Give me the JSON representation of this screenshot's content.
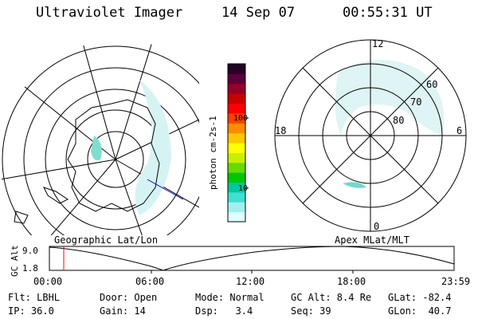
{
  "header": {
    "instrument": "Ultraviolet Imager",
    "date": "14 Sep 07",
    "time": "00:55:31 UT"
  },
  "left_panel": {
    "caption": "Geographic Lat/Lon"
  },
  "right_panel": {
    "caption": "Apex MLat/MLT",
    "mlt_labels": {
      "top": "12",
      "left": "18",
      "right": "6",
      "bottom": "0"
    },
    "lat_labels": [
      "60",
      "70",
      "80"
    ]
  },
  "colorbar": {
    "unit_label": "photon cm-2s-1",
    "ticks": [
      "100",
      "10"
    ],
    "colors": [
      "#e0ffff",
      "#a0f0f0",
      "#40e0d0",
      "#00c8a0",
      "#00c800",
      "#64dc00",
      "#c8f000",
      "#ffff00",
      "#ffc800",
      "#ff8c00",
      "#ff4000",
      "#ff0000",
      "#c80000",
      "#960028",
      "#5a003c",
      "#28002a"
    ]
  },
  "timeline": {
    "y_axis_label": "GC Alt",
    "y_values": [
      "9.0",
      "1.8"
    ],
    "x_ticks": [
      "00:00",
      "06:00",
      "12:00",
      "18:00",
      "23:59"
    ],
    "marker_color": "#ff0000"
  },
  "info": {
    "row1": {
      "flt": "Flt: LBHL",
      "door": "Door: Open",
      "mode": "Mode: Normal",
      "gcalt": "GC Alt: 8.4 Re",
      "glat": "GLat: -82.4"
    },
    "row2": {
      "ip": "IP: 36.0",
      "gain": "Gain: 14",
      "dsp": "Dsp:   3.4",
      "seq": "Seq: 39",
      "glon": "GLon:  40.7"
    }
  }
}
